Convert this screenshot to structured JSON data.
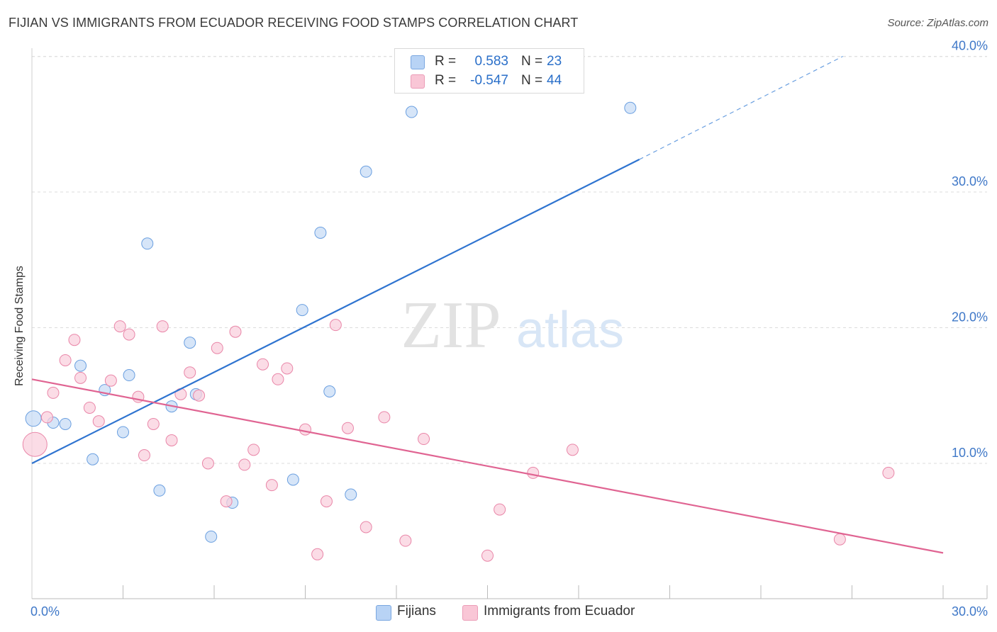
{
  "header": {
    "title": "FIJIAN VS IMMIGRANTS FROM ECUADOR RECEIVING FOOD STAMPS CORRELATION CHART",
    "source": "Source: ZipAtlas.com"
  },
  "watermark": {
    "zip": "ZIP",
    "atlas": "atlas"
  },
  "legend_top": {
    "rows": [
      {
        "r_label": "R =",
        "r_value": "0.583",
        "n_label": "N =",
        "n_value": "23",
        "color": "#b8d3f5"
      },
      {
        "r_label": "R =",
        "r_value": "-0.547",
        "n_label": "N =",
        "n_value": "44",
        "color": "#f9c6d6"
      }
    ]
  },
  "legend_bottom": {
    "items": [
      {
        "label": "Fijians",
        "color": "#b8d3f5"
      },
      {
        "label": "Immigrants from Ecuador",
        "color": "#f9c6d6"
      }
    ]
  },
  "chart_data": {
    "type": "scatter",
    "title": "FIJIAN VS IMMIGRANTS FROM ECUADOR RECEIVING FOOD STAMPS CORRELATION CHART",
    "xlabel": "",
    "ylabel": "Receiving Food Stamps",
    "xlim": [
      0,
      30
    ],
    "ylim": [
      0,
      40
    ],
    "x_tick_labels": [
      "0.0%",
      "30.0%"
    ],
    "y_tick_labels": [
      "10.0%",
      "20.0%",
      "30.0%",
      "40.0%"
    ],
    "y_ticks": [
      10,
      20,
      30,
      40
    ],
    "grid": true,
    "legend_position": "bottom",
    "series": [
      {
        "name": "Fijians",
        "color": "#6a9fe0",
        "fill": "#c8dcf5",
        "points": [
          {
            "x": 0.05,
            "y": 13.3,
            "big": true
          },
          {
            "x": 0.7,
            "y": 13.0
          },
          {
            "x": 1.1,
            "y": 12.9
          },
          {
            "x": 1.6,
            "y": 17.2
          },
          {
            "x": 2.0,
            "y": 10.3
          },
          {
            "x": 2.4,
            "y": 15.4
          },
          {
            "x": 3.0,
            "y": 12.3
          },
          {
            "x": 3.2,
            "y": 16.5
          },
          {
            "x": 3.8,
            "y": 26.2
          },
          {
            "x": 4.2,
            "y": 8.0
          },
          {
            "x": 4.6,
            "y": 14.2
          },
          {
            "x": 5.2,
            "y": 18.9
          },
          {
            "x": 5.4,
            "y": 15.1
          },
          {
            "x": 5.9,
            "y": 4.6
          },
          {
            "x": 6.6,
            "y": 7.1
          },
          {
            "x": 8.6,
            "y": 8.8
          },
          {
            "x": 8.9,
            "y": 21.3
          },
          {
            "x": 9.5,
            "y": 27.0
          },
          {
            "x": 9.8,
            "y": 15.3
          },
          {
            "x": 10.5,
            "y": 7.7
          },
          {
            "x": 11.0,
            "y": 31.5
          },
          {
            "x": 12.5,
            "y": 35.9
          },
          {
            "x": 19.7,
            "y": 36.2
          }
        ],
        "trend": {
          "x0": 0,
          "y0": 10.0,
          "x1": 20.0,
          "y1": 32.4,
          "x_dash_end": 26.7,
          "y_dash_end": 40.0
        }
      },
      {
        "name": "Immigrants from Ecuador",
        "color": "#e986a8",
        "fill": "#f9d0de",
        "points": [
          {
            "x": 0.1,
            "y": 11.4,
            "big": true
          },
          {
            "x": 0.5,
            "y": 13.4
          },
          {
            "x": 0.7,
            "y": 15.2
          },
          {
            "x": 1.1,
            "y": 17.6
          },
          {
            "x": 1.4,
            "y": 19.1
          },
          {
            "x": 1.6,
            "y": 16.3
          },
          {
            "x": 1.9,
            "y": 14.1
          },
          {
            "x": 2.2,
            "y": 13.1
          },
          {
            "x": 2.6,
            "y": 16.1
          },
          {
            "x": 2.9,
            "y": 20.1
          },
          {
            "x": 3.2,
            "y": 19.5
          },
          {
            "x": 3.5,
            "y": 14.9
          },
          {
            "x": 3.7,
            "y": 10.6
          },
          {
            "x": 4.0,
            "y": 12.9
          },
          {
            "x": 4.3,
            "y": 20.1
          },
          {
            "x": 4.6,
            "y": 11.7
          },
          {
            "x": 4.9,
            "y": 15.1
          },
          {
            "x": 5.2,
            "y": 16.7
          },
          {
            "x": 5.5,
            "y": 15.0
          },
          {
            "x": 5.8,
            "y": 10.0
          },
          {
            "x": 6.1,
            "y": 18.5
          },
          {
            "x": 6.4,
            "y": 7.2
          },
          {
            "x": 6.7,
            "y": 19.7
          },
          {
            "x": 7.0,
            "y": 9.9
          },
          {
            "x": 7.3,
            "y": 11.0
          },
          {
            "x": 7.6,
            "y": 17.3
          },
          {
            "x": 7.9,
            "y": 8.4
          },
          {
            "x": 8.1,
            "y": 16.2
          },
          {
            "x": 8.4,
            "y": 17.0
          },
          {
            "x": 9.0,
            "y": 12.5
          },
          {
            "x": 9.4,
            "y": 3.3
          },
          {
            "x": 9.7,
            "y": 7.2
          },
          {
            "x": 10.0,
            "y": 20.2
          },
          {
            "x": 10.4,
            "y": 12.6
          },
          {
            "x": 11.0,
            "y": 5.3
          },
          {
            "x": 11.6,
            "y": 13.4
          },
          {
            "x": 12.3,
            "y": 4.3
          },
          {
            "x": 12.9,
            "y": 11.8
          },
          {
            "x": 15.0,
            "y": 3.2
          },
          {
            "x": 15.4,
            "y": 6.6
          },
          {
            "x": 16.5,
            "y": 9.3
          },
          {
            "x": 17.8,
            "y": 11.0
          },
          {
            "x": 26.6,
            "y": 4.4
          },
          {
            "x": 28.2,
            "y": 9.3
          }
        ],
        "trend": {
          "x0": 0,
          "y0": 16.2,
          "x1": 30.0,
          "y1": 3.4
        }
      }
    ]
  }
}
